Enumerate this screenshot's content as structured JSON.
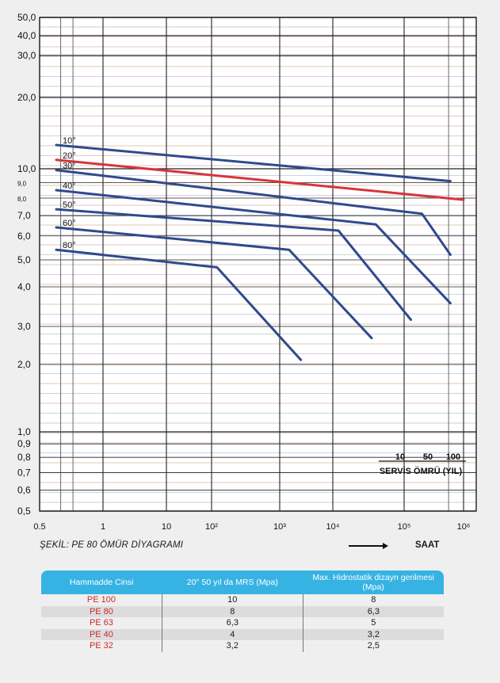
{
  "chart_data": {
    "type": "line",
    "x_scale": "log",
    "y_scale": "log",
    "x_ticks": [
      {
        "value": 0.5,
        "label": "0.5"
      },
      {
        "value": 1,
        "label": "1"
      },
      {
        "value": 10,
        "label": "10"
      },
      {
        "value": 100,
        "label": "10²"
      },
      {
        "value": 1000,
        "label": "10³"
      },
      {
        "value": 10000,
        "label": "10⁴"
      },
      {
        "value": 100000,
        "label": "10⁵"
      },
      {
        "value": 1000000,
        "label": "10⁶"
      }
    ],
    "y_ticks": [
      {
        "value": 50,
        "label": "50,0"
      },
      {
        "value": 40,
        "label": "40,0"
      },
      {
        "value": 30,
        "label": "30,0"
      },
      {
        "value": 20,
        "label": "20,0"
      },
      {
        "value": 10,
        "label": "10,0"
      },
      {
        "value": 9,
        "label": "9,0"
      },
      {
        "value": 8,
        "label": "8,0"
      },
      {
        "value": 7,
        "label": "7,0"
      },
      {
        "value": 6,
        "label": "6,0"
      },
      {
        "value": 5,
        "label": "5,0"
      },
      {
        "value": 4,
        "label": "4,0"
      },
      {
        "value": 3,
        "label": "3,0"
      },
      {
        "value": 2,
        "label": "2,0"
      },
      {
        "value": 1,
        "label": "1,0"
      },
      {
        "value": 0.9,
        "label": "0,9"
      },
      {
        "value": 0.8,
        "label": "0,8"
      },
      {
        "value": 0.7,
        "label": "0,7"
      },
      {
        "value": 0.6,
        "label": "0,6"
      },
      {
        "value": 0.5,
        "label": "0,5"
      }
    ],
    "series": [
      {
        "name": "10°",
        "color": "#2f4a8c",
        "points": [
          [
            0.6,
            12.6
          ],
          [
            600000,
            9.1
          ]
        ]
      },
      {
        "name": "20°",
        "color": "#d8343b",
        "points": [
          [
            0.6,
            10.9
          ],
          [
            1000000,
            7.9
          ]
        ]
      },
      {
        "name": "30°",
        "color": "#2f4a8c",
        "points": [
          [
            0.6,
            9.9
          ],
          [
            200000,
            7.1
          ],
          [
            600000,
            5.2
          ]
        ]
      },
      {
        "name": "40°",
        "color": "#2f4a8c",
        "points": [
          [
            0.6,
            8.5
          ],
          [
            40000,
            6.55
          ],
          [
            600000,
            3.55
          ]
        ]
      },
      {
        "name": "50°",
        "color": "#2f4a8c",
        "points": [
          [
            0.6,
            7.35
          ],
          [
            12000,
            6.25
          ],
          [
            130000,
            3.15
          ]
        ]
      },
      {
        "name": "60°",
        "color": "#2f4a8c",
        "points": [
          [
            0.6,
            6.4
          ],
          [
            1500,
            5.4
          ],
          [
            35000,
            2.65
          ]
        ]
      },
      {
        "name": "80°",
        "color": "#2f4a8c",
        "points": [
          [
            0.6,
            5.4
          ],
          [
            120,
            4.7
          ],
          [
            2500,
            2.1
          ]
        ]
      }
    ],
    "service_life": {
      "label": "SERVİS ÖMRÜ (YIL)",
      "ticks": [
        "10",
        "50",
        "100"
      ]
    }
  },
  "caption": "ŞEKİL: PE 80 ÖMÜR DİYAGRAMI",
  "x_unit": "SAAT",
  "table": {
    "headers": [
      "Hammadde Cinsi",
      "20° 50 yıl da MRS (Mpa)",
      "Max. Hidrostatik dizayn gerilmesi (Mpa)"
    ],
    "rows": [
      [
        "PE 100",
        "10",
        "8"
      ],
      [
        "PE 80",
        "8",
        "6,3"
      ],
      [
        "PE 63",
        "6,3",
        "5"
      ],
      [
        "PE 40",
        "4",
        "3,2"
      ],
      [
        "PE 32",
        "3,2",
        "2,5"
      ]
    ]
  }
}
